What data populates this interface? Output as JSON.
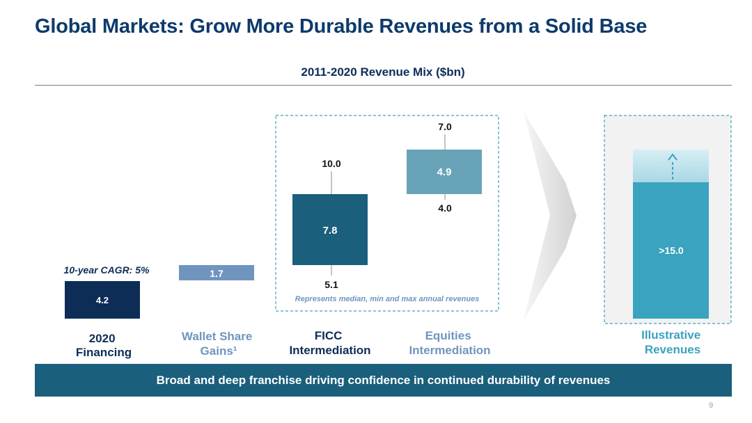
{
  "slide": {
    "title": "Global Markets: Grow More Durable Revenues from a Solid Base",
    "banner": "Broad and deep franchise driving confidence in continued durability of revenues",
    "page_number": "9"
  },
  "chart_data": {
    "type": "bar",
    "title": "2011-2020 Revenue Mix ($bn)",
    "categories": [
      "2020 Financing",
      "Wallet Share Gains¹",
      "FICC Intermediation",
      "Equities Intermediation",
      "Illustrative Revenues"
    ],
    "category_lines": [
      [
        "2020",
        "Financing"
      ],
      [
        "Wallet Share",
        "Gains¹"
      ],
      [
        "FICC",
        "Intermediation"
      ],
      [
        "Equities",
        "Intermediation"
      ],
      [
        "Illustrative",
        "Revenues"
      ]
    ],
    "category_colors": [
      "#0d2d57",
      "#6f95bf",
      "#0d2d57",
      "#6f95bf",
      "#3aa3bf"
    ],
    "bars": [
      {
        "category": "2020 Financing",
        "value": 4.2,
        "label": "4.2",
        "color": "#0d2d57",
        "note": "10-year CAGR: 5%"
      },
      {
        "category": "Wallet Share Gains¹",
        "value": 1.7,
        "label": "1.7",
        "color": "#6f95bf"
      },
      {
        "category": "FICC Intermediation",
        "median": 7.8,
        "min": 5.1,
        "max": 10.0,
        "label": "7.8",
        "min_label": "5.1",
        "max_label": "10.0",
        "color": "#1a5f7c"
      },
      {
        "category": "Equities Intermediation",
        "median": 4.9,
        "min": 4.0,
        "max": 7.0,
        "label": "4.9",
        "min_label": "4.0",
        "max_label": "7.0",
        "color": "#69a3b8"
      },
      {
        "category": "Illustrative Revenues",
        "value": 15.0,
        "label": ">15.0",
        "color": "#3aa3bf"
      }
    ],
    "annotation": "Represents median, min and max annual revenues"
  }
}
